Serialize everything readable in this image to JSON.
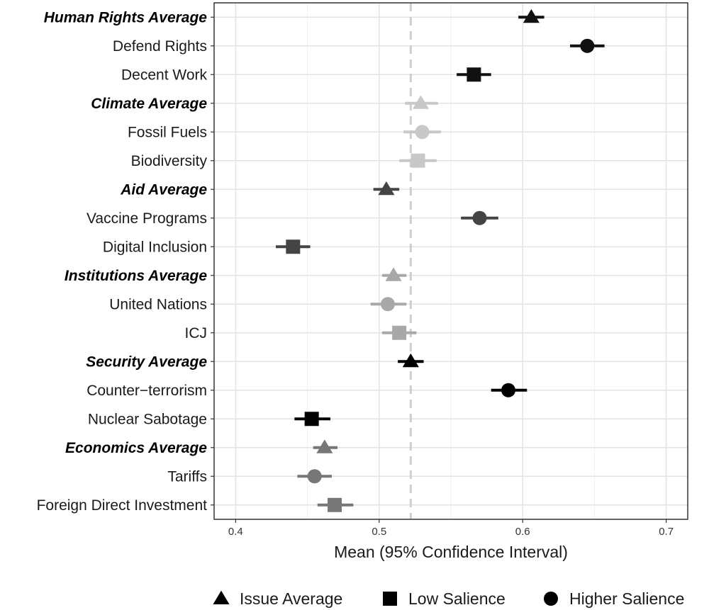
{
  "chart_data": {
    "type": "scatter",
    "title": "",
    "xlabel": "Mean (95% Confidence Interval)",
    "ylabel": "",
    "xlim": [
      0.385,
      0.715
    ],
    "xticks": [
      0.4,
      0.5,
      0.6,
      0.7
    ],
    "xtick_labels": [
      "0.4",
      "0.5",
      "0.6",
      "0.7"
    ],
    "reference_line": 0.522,
    "grid": true,
    "legend_position": "bottom",
    "legend": [
      {
        "label": "Issue Average",
        "shape": "triangle"
      },
      {
        "label": "Low Salience",
        "shape": "square"
      },
      {
        "label": "Higher Salience",
        "shape": "circle"
      }
    ],
    "rows": [
      {
        "label": "Human Rights Average",
        "bold": true,
        "shape": "triangle",
        "color": "#111111",
        "mean": 0.606,
        "lo": 0.597,
        "hi": 0.615
      },
      {
        "label": "Defend Rights",
        "bold": false,
        "shape": "circle",
        "color": "#111111",
        "mean": 0.645,
        "lo": 0.633,
        "hi": 0.657
      },
      {
        "label": "Decent Work",
        "bold": false,
        "shape": "square",
        "color": "#111111",
        "mean": 0.566,
        "lo": 0.554,
        "hi": 0.578
      },
      {
        "label": "Climate Average",
        "bold": true,
        "shape": "triangle",
        "color": "#c8c8c8",
        "mean": 0.529,
        "lo": 0.518,
        "hi": 0.541
      },
      {
        "label": "Fossil Fuels",
        "bold": false,
        "shape": "circle",
        "color": "#c8c8c8",
        "mean": 0.53,
        "lo": 0.517,
        "hi": 0.543
      },
      {
        "label": "Biodiversity",
        "bold": false,
        "shape": "square",
        "color": "#c8c8c8",
        "mean": 0.527,
        "lo": 0.514,
        "hi": 0.54
      },
      {
        "label": "Aid Average",
        "bold": true,
        "shape": "triangle",
        "color": "#444444",
        "mean": 0.505,
        "lo": 0.496,
        "hi": 0.514
      },
      {
        "label": "Vaccine Programs",
        "bold": false,
        "shape": "circle",
        "color": "#444444",
        "mean": 0.57,
        "lo": 0.557,
        "hi": 0.583
      },
      {
        "label": "Digital Inclusion",
        "bold": false,
        "shape": "square",
        "color": "#444444",
        "mean": 0.44,
        "lo": 0.428,
        "hi": 0.452
      },
      {
        "label": "Institutions Average",
        "bold": true,
        "shape": "triangle",
        "color": "#a8a8a8",
        "mean": 0.51,
        "lo": 0.502,
        "hi": 0.519
      },
      {
        "label": "United Nations",
        "bold": false,
        "shape": "circle",
        "color": "#a8a8a8",
        "mean": 0.506,
        "lo": 0.494,
        "hi": 0.519
      },
      {
        "label": "ICJ",
        "bold": false,
        "shape": "square",
        "color": "#a8a8a8",
        "mean": 0.514,
        "lo": 0.502,
        "hi": 0.526
      },
      {
        "label": "Security Average",
        "bold": true,
        "shape": "triangle",
        "color": "#000000",
        "mean": 0.522,
        "lo": 0.513,
        "hi": 0.531
      },
      {
        "label": "Counter−terrorism",
        "bold": false,
        "shape": "circle",
        "color": "#000000",
        "mean": 0.59,
        "lo": 0.578,
        "hi": 0.603
      },
      {
        "label": "Nuclear Sabotage",
        "bold": false,
        "shape": "square",
        "color": "#000000",
        "mean": 0.453,
        "lo": 0.441,
        "hi": 0.466
      },
      {
        "label": "Economics Average",
        "bold": true,
        "shape": "triangle",
        "color": "#777777",
        "mean": 0.462,
        "lo": 0.454,
        "hi": 0.471
      },
      {
        "label": "Tariffs",
        "bold": false,
        "shape": "circle",
        "color": "#777777",
        "mean": 0.455,
        "lo": 0.443,
        "hi": 0.467
      },
      {
        "label": "Foreign Direct Investment",
        "bold": false,
        "shape": "square",
        "color": "#777777",
        "mean": 0.469,
        "lo": 0.457,
        "hi": 0.482
      }
    ]
  }
}
